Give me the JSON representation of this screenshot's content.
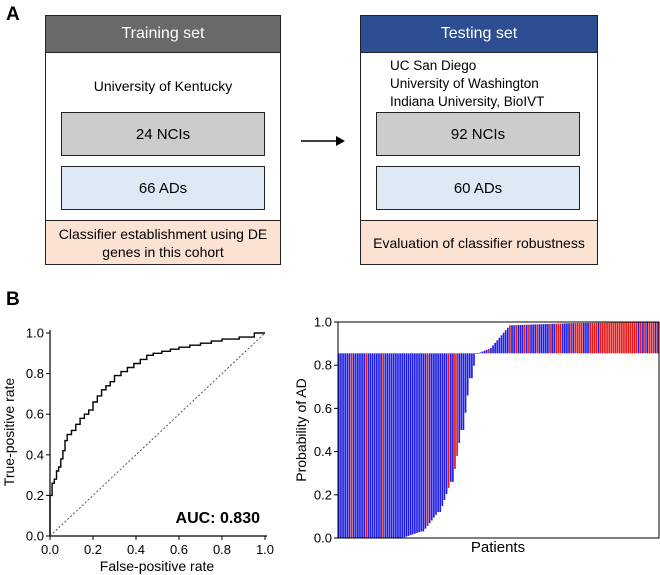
{
  "panel_a": {
    "letter": "A",
    "training": {
      "title": "Training set",
      "institution": "University of Kentucky",
      "nci_label": "24 NCIs",
      "ad_label": "66 ADs",
      "footer_line1": "Classifier establishment using DE",
      "footer_line2": "genes in this cohort",
      "header_color": "#6b6868"
    },
    "testing": {
      "title": "Testing set",
      "institutions": [
        "UC San Diego",
        "University of Washington",
        "Indiana University, BioIVT"
      ],
      "nci_label": "92 NCIs",
      "ad_label": "60 ADs",
      "footer": "Evaluation of classifier robustness",
      "header_color": "#2e4e93"
    },
    "arrow_icon": "right-arrow-icon"
  },
  "panel_b": {
    "letter": "B",
    "roc": {
      "xlabel": "False-positive rate",
      "ylabel": "True-positive rate",
      "auc_text": "AUC: 0.830",
      "xticks": [
        "0.0",
        "0.2",
        "0.4",
        "0.6",
        "0.8",
        "1.0"
      ],
      "yticks": [
        "0.0",
        "0.2",
        "0.4",
        "0.6",
        "0.8",
        "1.0"
      ]
    },
    "prob": {
      "xlabel": "Patients",
      "ylabel": "Probability of AD",
      "yticks": [
        "0.0",
        "0.2",
        "0.4",
        "0.6",
        "0.8",
        "1.0"
      ]
    }
  },
  "chart_data": [
    {
      "type": "line",
      "xlabel": "False-positive rate",
      "ylabel": "True-positive rate",
      "xlim": [
        0,
        1
      ],
      "ylim": [
        0,
        1
      ],
      "annotation": "AUC: 0.830",
      "series": [
        {
          "x": [
            0,
            0,
            0.01,
            0.01,
            0.02,
            0.02,
            0.03,
            0.03,
            0.04,
            0.04,
            0.05,
            0.05,
            0.06,
            0.06,
            0.07,
            0.07,
            0.08,
            0.08,
            0.1,
            0.1,
            0.12,
            0.12,
            0.14,
            0.14,
            0.16,
            0.16,
            0.18,
            0.18,
            0.2,
            0.2,
            0.22,
            0.22,
            0.24,
            0.24,
            0.26,
            0.26,
            0.28,
            0.28,
            0.3,
            0.3,
            0.33,
            0.33,
            0.36,
            0.36,
            0.39,
            0.39,
            0.42,
            0.42,
            0.45,
            0.45,
            0.48,
            0.48,
            0.52,
            0.52,
            0.56,
            0.56,
            0.6,
            0.6,
            0.65,
            0.65,
            0.7,
            0.7,
            0.75,
            0.75,
            0.8,
            0.8,
            0.88,
            0.88,
            0.95,
            0.95,
            1.0
          ],
          "y": [
            0,
            0.2,
            0.2,
            0.26,
            0.26,
            0.28,
            0.28,
            0.32,
            0.32,
            0.34,
            0.34,
            0.38,
            0.38,
            0.42,
            0.42,
            0.47,
            0.47,
            0.5,
            0.5,
            0.52,
            0.52,
            0.55,
            0.55,
            0.58,
            0.58,
            0.6,
            0.6,
            0.62,
            0.62,
            0.66,
            0.66,
            0.69,
            0.69,
            0.72,
            0.72,
            0.74,
            0.74,
            0.76,
            0.76,
            0.79,
            0.79,
            0.81,
            0.81,
            0.83,
            0.83,
            0.85,
            0.85,
            0.87,
            0.87,
            0.89,
            0.89,
            0.9,
            0.9,
            0.91,
            0.91,
            0.92,
            0.92,
            0.93,
            0.93,
            0.94,
            0.94,
            0.95,
            0.95,
            0.96,
            0.96,
            0.97,
            0.97,
            0.98,
            0.98,
            1.0,
            1.0
          ]
        },
        {
          "x": [
            0,
            1
          ],
          "y": [
            0,
            1
          ]
        }
      ]
    },
    {
      "type": "bar",
      "xlabel": "Patients",
      "ylabel": "Probability of AD",
      "ylim": [
        0,
        1
      ],
      "group_colors": {
        "NCI": "#1f1fe6",
        "AD": "#e81818"
      },
      "baseline": 0.855,
      "segments": [
        {
          "count": 10,
          "start": 0.0,
          "end": 0.0
        },
        {
          "count": 20,
          "start": 0.0,
          "end": 0.0
        },
        {
          "count": 10,
          "start": 0.0,
          "end": 0.03
        },
        {
          "count": 8,
          "start": 0.03,
          "end": 0.12
        },
        {
          "count": 6,
          "start": 0.12,
          "end": 0.26
        },
        {
          "count": 5,
          "start": 0.26,
          "end": 0.5
        },
        {
          "count": 4,
          "start": 0.5,
          "end": 0.74
        },
        {
          "count": 3,
          "start": 0.74,
          "end": 0.855
        },
        {
          "count": 6,
          "start": 0.855,
          "end": 0.875
        },
        {
          "count": 10,
          "start": 0.88,
          "end": 0.985
        },
        {
          "count": 30,
          "start": 0.985,
          "end": 0.995
        },
        {
          "count": 40,
          "start": 0.995,
          "end": 1.0
        }
      ],
      "ad_fraction_by_region": [
        0.08,
        0.1,
        0.15,
        0.3,
        0.45,
        0.6
      ]
    }
  ]
}
